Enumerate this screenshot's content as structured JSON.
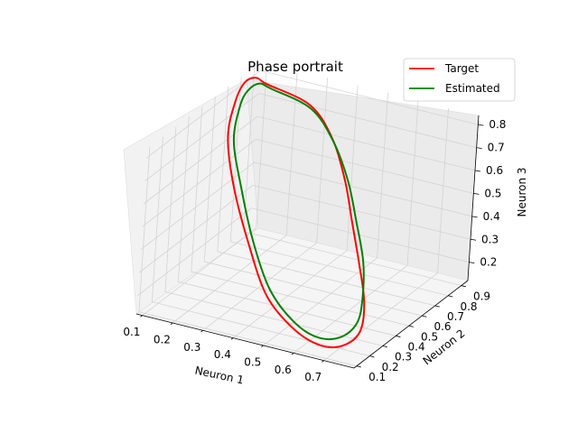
{
  "chart_data": {
    "type": "line",
    "projection": "3d",
    "title": "Phase portrait",
    "xlabel": "Neuron 1",
    "ylabel": "Neuron 2",
    "zlabel": "Neuron 3",
    "xlim": [
      0.08,
      0.8
    ],
    "ylim": [
      0.08,
      0.95
    ],
    "zlim": [
      0.12,
      0.84
    ],
    "x_ticks": [
      0.1,
      0.2,
      0.3,
      0.4,
      0.5,
      0.6,
      0.7
    ],
    "x_tick_labels": [
      "0.1",
      "0.2",
      "0.3",
      "0.4",
      "0.5",
      "0.6",
      "0.7"
    ],
    "y_ticks": [
      0.1,
      0.2,
      0.3,
      0.4,
      0.5,
      0.6,
      0.7,
      0.8,
      0.9
    ],
    "y_tick_labels": [
      "0.1",
      "0.2",
      "0.3",
      "0.4",
      "0.5",
      "0.6",
      "0.7",
      "0.8",
      "0.9"
    ],
    "z_ticks": [
      0.2,
      0.3,
      0.4,
      0.5,
      0.6,
      0.7,
      0.8
    ],
    "z_tick_labels": [
      "0.2",
      "0.3",
      "0.4",
      "0.5",
      "0.6",
      "0.7",
      "0.8"
    ],
    "grid": true,
    "legend_position": "top-right",
    "series": [
      {
        "name": "Target",
        "color": "#ff0000",
        "x": [
          0.14,
          0.3,
          0.42,
          0.52,
          0.6,
          0.68,
          0.75,
          0.78,
          0.75,
          0.68,
          0.58,
          0.46,
          0.34,
          0.22,
          0.13,
          0.09,
          0.08,
          0.1
        ],
        "y": [
          0.86,
          0.82,
          0.72,
          0.6,
          0.48,
          0.36,
          0.25,
          0.16,
          0.11,
          0.1,
          0.12,
          0.18,
          0.3,
          0.45,
          0.6,
          0.74,
          0.83,
          0.87
        ],
        "z": [
          0.8,
          0.78,
          0.72,
          0.62,
          0.52,
          0.42,
          0.32,
          0.24,
          0.19,
          0.17,
          0.2,
          0.28,
          0.42,
          0.56,
          0.68,
          0.76,
          0.8,
          0.81
        ]
      },
      {
        "name": "Estimated",
        "color": "#008000",
        "x": [
          0.16,
          0.31,
          0.43,
          0.53,
          0.61,
          0.69,
          0.74,
          0.76,
          0.73,
          0.66,
          0.57,
          0.46,
          0.35,
          0.24,
          0.15,
          0.11,
          0.1,
          0.12
        ],
        "y": [
          0.85,
          0.81,
          0.71,
          0.6,
          0.49,
          0.37,
          0.26,
          0.18,
          0.13,
          0.12,
          0.14,
          0.2,
          0.31,
          0.46,
          0.6,
          0.73,
          0.81,
          0.85
        ],
        "z": [
          0.79,
          0.77,
          0.71,
          0.62,
          0.52,
          0.42,
          0.33,
          0.26,
          0.21,
          0.19,
          0.22,
          0.3,
          0.43,
          0.56,
          0.67,
          0.75,
          0.78,
          0.8
        ]
      }
    ]
  }
}
